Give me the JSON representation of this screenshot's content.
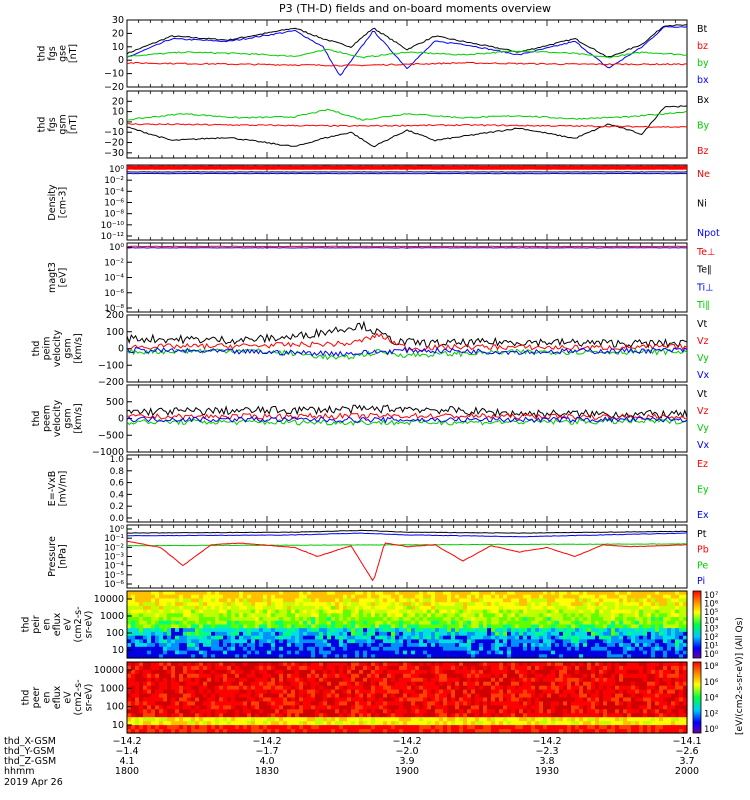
{
  "title": "P3 (TH-D) fields and on-board moments overview",
  "colors": {
    "black": "#000000",
    "red": "#ff0000",
    "green": "#00cc00",
    "blue": "#0000ff",
    "bg": "#ffffff"
  },
  "time_axis": {
    "start": "18:00",
    "end": "20:00",
    "rows": [
      {
        "name": "thd_X-GSM",
        "values": [
          "-14.2",
          "-14.2",
          "-14.2",
          "-14.2",
          "-14.1"
        ]
      },
      {
        "name": "thd_Y-GSM",
        "values": [
          "-1.4",
          "-1.7",
          "-2.0",
          "-2.3",
          "-2.6"
        ]
      },
      {
        "name": "thd_Z-GSM",
        "values": [
          "4.1",
          "4.0",
          "3.9",
          "3.8",
          "3.7"
        ]
      },
      {
        "name": "hhmm",
        "values": [
          "1800",
          "1830",
          "1900",
          "1930",
          "2000"
        ]
      }
    ],
    "date": "2019 Apr 26"
  },
  "colorbar_label": "[eV/(cm2-s-sr-eV)] (All Qs)",
  "chart_data": [
    {
      "type": "line",
      "id": "fgs_gse",
      "ylabel_lines": [
        "thd",
        "fgs",
        "gse",
        "[nT]"
      ],
      "ylim": [
        -20,
        30
      ],
      "yticks": [
        -20,
        -10,
        0,
        10,
        20,
        30
      ],
      "legend": [
        {
          "text": "Bt",
          "color": "#000000"
        },
        {
          "text": "bz",
          "color": "#ff0000"
        },
        {
          "text": "by",
          "color": "#00cc00"
        },
        {
          "text": "bx",
          "color": "#0000ff"
        }
      ],
      "series": [
        {
          "name": "Bt",
          "color": "#000000",
          "x": [
            0,
            0.08,
            0.18,
            0.3,
            0.35,
            0.4,
            0.44,
            0.5,
            0.55,
            0.6,
            0.7,
            0.8,
            0.86,
            0.92,
            0.96,
            1
          ],
          "values": [
            5,
            18,
            15,
            24,
            16,
            10,
            24,
            8,
            18,
            14,
            6,
            16,
            2,
            12,
            26,
            26
          ]
        },
        {
          "name": "bx",
          "color": "#0000ff",
          "x": [
            0,
            0.08,
            0.18,
            0.3,
            0.35,
            0.38,
            0.44,
            0.5,
            0.55,
            0.6,
            0.7,
            0.8,
            0.86,
            0.92,
            0.96,
            1
          ],
          "values": [
            2,
            16,
            14,
            22,
            10,
            -12,
            22,
            -6,
            14,
            12,
            4,
            14,
            -6,
            10,
            25,
            25
          ]
        },
        {
          "name": "by",
          "color": "#00cc00",
          "x": [
            0,
            0.1,
            0.2,
            0.3,
            0.36,
            0.42,
            0.5,
            0.6,
            0.7,
            0.8,
            0.86,
            0.92,
            1
          ],
          "values": [
            3,
            6,
            5,
            3,
            8,
            2,
            6,
            4,
            7,
            5,
            2,
            6,
            4
          ]
        },
        {
          "name": "bz",
          "color": "#ff0000",
          "x": [
            0,
            0.2,
            0.4,
            0.5,
            0.6,
            0.8,
            1
          ],
          "values": [
            -2,
            -3,
            -4,
            -3,
            -2,
            -3,
            -3
          ]
        }
      ]
    },
    {
      "type": "line",
      "id": "fgs_gsm",
      "ylabel_lines": [
        "thd",
        "fgs",
        "gsm",
        "[nT]"
      ],
      "ylim": [
        -35,
        30
      ],
      "yticks": [
        -30,
        -20,
        -10,
        0,
        10,
        20
      ],
      "legend": [
        {
          "text": "Bx",
          "color": "#000000"
        },
        {
          "text": "By",
          "color": "#00cc00"
        },
        {
          "text": "Bz",
          "color": "#ff0000"
        }
      ],
      "series": [
        {
          "name": "Bx",
          "color": "#000000",
          "x": [
            0,
            0.08,
            0.18,
            0.3,
            0.35,
            0.4,
            0.44,
            0.5,
            0.55,
            0.6,
            0.7,
            0.8,
            0.86,
            0.92,
            0.96,
            1
          ],
          "values": [
            -5,
            -18,
            -15,
            -24,
            -16,
            -10,
            -24,
            -8,
            -18,
            -14,
            -6,
            -16,
            -2,
            -12,
            15,
            15
          ]
        },
        {
          "name": "By",
          "color": "#00cc00",
          "x": [
            0,
            0.1,
            0.2,
            0.3,
            0.36,
            0.42,
            0.5,
            0.6,
            0.7,
            0.8,
            0.9,
            1
          ],
          "values": [
            2,
            8,
            4,
            5,
            12,
            2,
            8,
            4,
            6,
            3,
            5,
            10
          ]
        },
        {
          "name": "Bz",
          "color": "#ff0000",
          "x": [
            0,
            0.2,
            0.4,
            0.6,
            0.8,
            1
          ],
          "values": [
            -2,
            -3,
            -4,
            -3,
            -4,
            -5
          ]
        }
      ]
    },
    {
      "type": "line",
      "id": "density",
      "ylabel_lines": [
        "Density",
        "[cm-3]"
      ],
      "log": true,
      "ylim": [
        -13,
        1
      ],
      "ytick_labels": [
        "10⁰",
        "10⁻²",
        "10⁻⁴",
        "10⁻⁶",
        "10⁻⁸",
        "10⁻¹⁰",
        "10⁻¹²"
      ],
      "legend": [
        {
          "text": "Ne",
          "color": "#ff0000"
        },
        {
          "text": "Ni",
          "color": "#000000"
        },
        {
          "text": "Npot",
          "color": "#0000ff"
        }
      ],
      "series": [
        {
          "name": "Ne",
          "color": "#ff0000",
          "x": [
            0,
            1
          ],
          "values": [
            0.5,
            0.5
          ]
        },
        {
          "name": "Ni",
          "color": "#000000",
          "x": [
            0,
            1
          ],
          "values": [
            -0.3,
            -0.3
          ]
        },
        {
          "name": "Npot",
          "color": "#0000ff",
          "x": [
            0,
            1
          ],
          "values": [
            -0.6,
            -0.6
          ]
        }
      ]
    },
    {
      "type": "line",
      "id": "magt3",
      "ylabel_lines": [
        "magt3",
        "[eV]"
      ],
      "log": true,
      "ylim": [
        -9,
        1
      ],
      "ytick_labels": [
        "10⁰",
        "10⁻²",
        "10⁻⁴",
        "10⁻⁶",
        "10⁻⁸"
      ],
      "legend": [
        {
          "text": "Te⊥",
          "color": "#ff0000"
        },
        {
          "text": "Te∥",
          "color": "#000000"
        },
        {
          "text": "Ti⊥",
          "color": "#0000ff"
        },
        {
          "text": "Ti∥",
          "color": "#00cc00"
        }
      ],
      "series": [
        {
          "name": "Te⊥",
          "color": "#ff0000",
          "x": [
            0,
            1
          ],
          "values": [
            0.5,
            0.5
          ]
        },
        {
          "name": "Ti⊥",
          "color": "#0000ff",
          "x": [
            0,
            1
          ],
          "values": [
            0.3,
            0.3
          ]
        }
      ]
    },
    {
      "type": "line",
      "id": "peim",
      "ylabel_lines": [
        "thd",
        "peim",
        "velocity",
        "gsm",
        "[km/s]"
      ],
      "ylim": [
        -200,
        200
      ],
      "yticks": [
        -200,
        -100,
        0,
        100,
        200
      ],
      "noise": true,
      "legend": [
        {
          "text": "Vt",
          "color": "#000000"
        },
        {
          "text": "Vz",
          "color": "#ff0000"
        },
        {
          "text": "Vy",
          "color": "#00cc00"
        },
        {
          "text": "Vx",
          "color": "#0000ff"
        }
      ],
      "series": [
        {
          "name": "Vt",
          "color": "#000000",
          "x": [
            0,
            0.2,
            0.3,
            0.42,
            0.48,
            0.55,
            0.7,
            0.9,
            1
          ],
          "values": [
            60,
            50,
            70,
            140,
            40,
            30,
            40,
            30,
            30
          ]
        },
        {
          "name": "Vz",
          "color": "#ff0000",
          "x": [
            0,
            0.2,
            0.4,
            0.45,
            0.5,
            0.6,
            0.8,
            1
          ],
          "values": [
            10,
            15,
            30,
            80,
            0,
            10,
            5,
            10
          ]
        },
        {
          "name": "Vy",
          "color": "#00cc00",
          "x": [
            0,
            0.2,
            0.3,
            0.38,
            0.45,
            0.5,
            0.7,
            1
          ],
          "values": [
            -20,
            -10,
            -30,
            -60,
            -20,
            -40,
            -20,
            -20
          ]
        },
        {
          "name": "Vx",
          "color": "#0000ff",
          "x": [
            0,
            0.2,
            0.4,
            0.5,
            0.7,
            1
          ],
          "values": [
            -10,
            -20,
            -30,
            -10,
            -20,
            -10
          ]
        }
      ]
    },
    {
      "type": "line",
      "id": "peem",
      "ylabel_lines": [
        "thd",
        "peem",
        "velocity",
        "gsm",
        "[km/s]"
      ],
      "ylim": [
        -1000,
        1000
      ],
      "yticks": [
        -1000,
        -500,
        0,
        500
      ],
      "noise": true,
      "legend": [
        {
          "text": "Vt",
          "color": "#000000"
        },
        {
          "text": "Vz",
          "color": "#ff0000"
        },
        {
          "text": "Vy",
          "color": "#00cc00"
        },
        {
          "text": "Vx",
          "color": "#0000ff"
        }
      ],
      "series": [
        {
          "name": "Vt",
          "color": "#000000",
          "x": [
            0,
            0.3,
            0.5,
            0.7,
            1
          ],
          "values": [
            200,
            250,
            300,
            150,
            120
          ]
        },
        {
          "name": "Vz",
          "color": "#ff0000",
          "x": [
            0,
            0.5,
            1
          ],
          "values": [
            50,
            80,
            40
          ]
        },
        {
          "name": "Vy",
          "color": "#00cc00",
          "x": [
            0,
            0.5,
            1
          ],
          "values": [
            -100,
            -120,
            -80
          ]
        },
        {
          "name": "Vx",
          "color": "#0000ff",
          "x": [
            0,
            0.5,
            1
          ],
          "values": [
            -20,
            -40,
            -30
          ]
        }
      ]
    },
    {
      "type": "line",
      "id": "efield",
      "ylabel_lines": [
        "E=-VxB",
        "[mV/m]"
      ],
      "ylim": [
        0,
        1
      ],
      "ytick_labels": [
        "1.0",
        "0.8",
        "0.6",
        "0.4",
        "0.2",
        "0.0"
      ],
      "legend": [
        {
          "text": "Ez",
          "color": "#ff0000"
        },
        {
          "text": "Ey",
          "color": "#00cc00"
        },
        {
          "text": "Ex",
          "color": "#0000ff"
        }
      ],
      "series": []
    },
    {
      "type": "line",
      "id": "pressure",
      "ylabel_lines": [
        "Pressure",
        "[nPa]"
      ],
      "log": true,
      "ylim": [
        -6,
        1
      ],
      "ytick_labels": [
        "10⁰",
        "10⁻¹",
        "10⁻²",
        "10⁻³",
        "10⁻⁴",
        "10⁻⁵",
        "10⁻⁶"
      ],
      "legend": [
        {
          "text": "Pt",
          "color": "#000000"
        },
        {
          "text": "Pb",
          "color": "#ff0000"
        },
        {
          "text": "Pe",
          "color": "#00cc00"
        },
        {
          "text": "Pi",
          "color": "#0000ff"
        }
      ],
      "series": [
        {
          "name": "Pt",
          "color": "#000000",
          "x": [
            0,
            0.3,
            0.42,
            0.5,
            0.7,
            1
          ],
          "values": [
            0.1,
            0.2,
            0.4,
            0.2,
            0.1,
            0.3
          ]
        },
        {
          "name": "Pi",
          "color": "#0000ff",
          "x": [
            0,
            0.3,
            0.42,
            0.5,
            0.7,
            1
          ],
          "values": [
            -0.2,
            -0.1,
            0.1,
            -0.1,
            -0.3,
            0.1
          ]
        },
        {
          "name": "Pe",
          "color": "#00cc00",
          "x": [
            0,
            0.5,
            1
          ],
          "values": [
            -1.3,
            -1.2,
            -1.1
          ]
        },
        {
          "name": "Pb",
          "color": "#ff0000",
          "x": [
            0,
            0.06,
            0.1,
            0.15,
            0.2,
            0.3,
            0.34,
            0.4,
            0.44,
            0.46,
            0.5,
            0.55,
            0.6,
            0.65,
            0.7,
            0.75,
            0.8,
            0.85,
            0.9,
            0.95,
            1
          ],
          "values": [
            -0.8,
            -1.5,
            -3.5,
            -1.2,
            -1.0,
            -1.5,
            -2.5,
            -1.3,
            -5.3,
            -1.0,
            -1.4,
            -1.2,
            -3.0,
            -1.3,
            -2.0,
            -1.5,
            -2.5,
            -1.2,
            -1.4,
            -1.3,
            -1.2
          ]
        }
      ]
    },
    {
      "type": "heatmap",
      "id": "peir",
      "ylabel_lines": [
        "thd",
        "peir",
        "en",
        "eflux",
        "eV",
        "(cm2-s-",
        "sr-eV)"
      ],
      "ytick_labels": [
        "10000",
        "1000",
        "100",
        "10"
      ],
      "palette": "ion",
      "colorbar_ticks": [
        "10⁷",
        "10⁶",
        "10⁵",
        "10⁴",
        "10³",
        "10²",
        "10¹",
        "10⁰"
      ]
    },
    {
      "type": "heatmap",
      "id": "peer",
      "ylabel_lines": [
        "thd",
        "peer",
        "en",
        "eflux",
        "eV",
        "(cm2-s-",
        "sr-eV)"
      ],
      "ytick_labels": [
        "10000",
        "1000",
        "100",
        "10"
      ],
      "palette": "electron",
      "colorbar_ticks": [
        "10⁸",
        "10⁶",
        "10⁴",
        "10²",
        "10⁰"
      ]
    }
  ]
}
